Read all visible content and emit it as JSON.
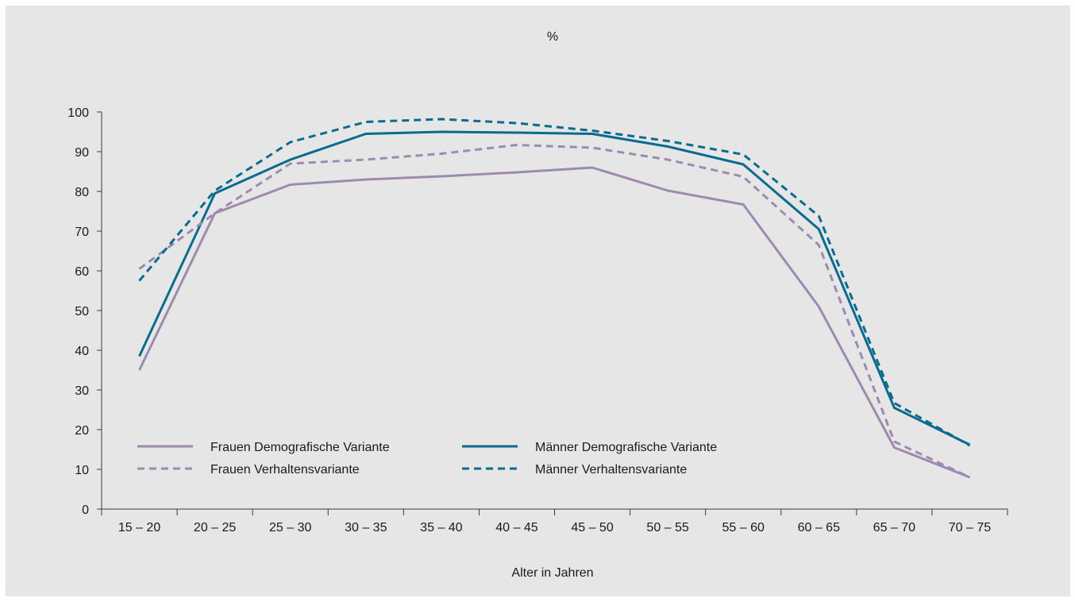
{
  "chart_data": {
    "type": "line",
    "title": "",
    "ylabel": "%",
    "xlabel": "Alter in Jahren",
    "categories": [
      "15 – 20",
      "20 – 25",
      "25 – 30",
      "30 – 35",
      "35 – 40",
      "40 – 45",
      "45 – 50",
      "50 – 55",
      "55 – 60",
      "60 – 65",
      "65 – 70",
      "70 – 75"
    ],
    "ylim": [
      0,
      100
    ],
    "yticks": [
      0,
      10,
      20,
      30,
      40,
      50,
      60,
      70,
      80,
      90,
      100
    ],
    "grid": false,
    "legend_position": "lower-left",
    "series": [
      {
        "name": "Frauen Demografische Variante",
        "color": "#9e8ab0",
        "style": "solid",
        "values": [
          35,
          74.5,
          81.7,
          83,
          83.8,
          84.8,
          86,
          80.2,
          76.7,
          51,
          15.5,
          8
        ]
      },
      {
        "name": "Männer Demografische Variante",
        "color": "#0b6b8f",
        "style": "solid",
        "values": [
          38.5,
          79.5,
          88,
          94.5,
          95,
          94.8,
          94.5,
          91.3,
          86.8,
          70.5,
          25.5,
          16.2
        ]
      },
      {
        "name": "Frauen Verhaltensvariante",
        "color": "#9e8ab0",
        "style": "dashed",
        "values": [
          60.5,
          74.5,
          87,
          88,
          89.5,
          91.7,
          91,
          88,
          83.7,
          66.5,
          17,
          8
        ]
      },
      {
        "name": "Männer Verhaltensvariante",
        "color": "#0b6b8f",
        "style": "dashed",
        "values": [
          57.5,
          80.2,
          92.4,
          97.5,
          98.2,
          97.2,
          95.3,
          92.7,
          89.3,
          73.8,
          26.7,
          16
        ]
      }
    ]
  }
}
